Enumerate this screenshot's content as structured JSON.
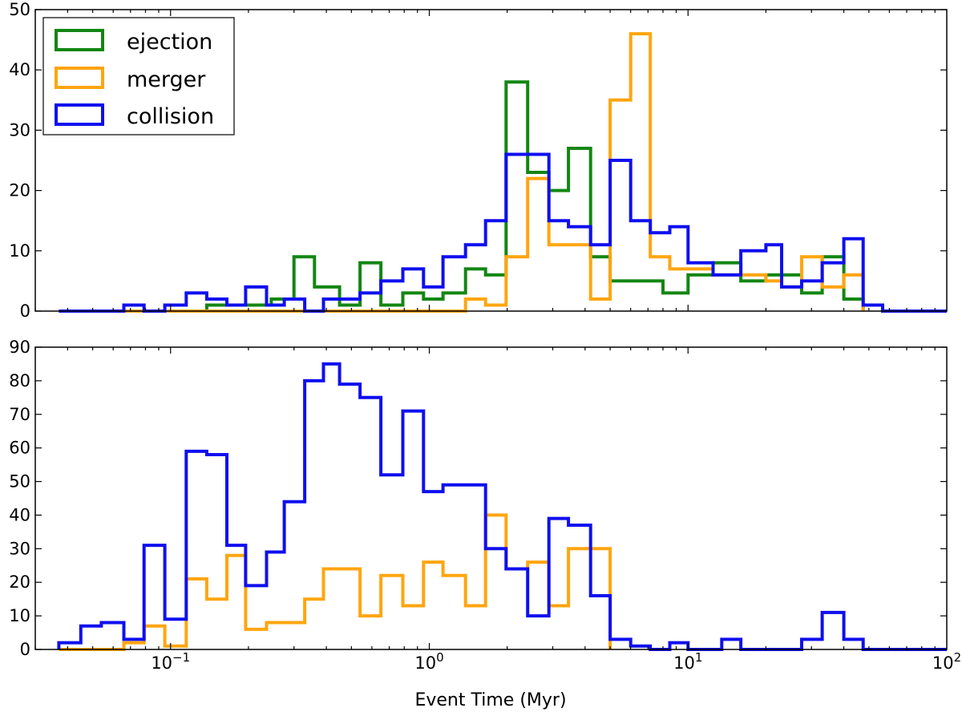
{
  "colors": {
    "ejection": "#138613",
    "merger": "#ffa50f",
    "collision": "#0f0fef"
  },
  "chart_data": [
    {
      "type": "step-histogram",
      "xscale": "log",
      "xlim": [
        0.03,
        100
      ],
      "ylim": [
        0,
        50
      ],
      "yticks": [
        0,
        10,
        20,
        30,
        40,
        50
      ],
      "xlabel": "",
      "legend_position": "top-left",
      "legend": [
        "ejection",
        "merger",
        "collision"
      ],
      "series": [
        {
          "name": "ejection",
          "steps": [
            [
              0.037,
              0
            ],
            [
              0.138,
              1
            ],
            [
              0.245,
              2
            ],
            [
              0.3,
              9
            ],
            [
              0.36,
              4
            ],
            [
              0.45,
              1
            ],
            [
              0.54,
              8
            ],
            [
              0.65,
              1
            ],
            [
              0.79,
              3
            ],
            [
              0.95,
              2
            ],
            [
              1.13,
              3
            ],
            [
              1.38,
              7
            ],
            [
              1.65,
              6
            ],
            [
              1.98,
              38
            ],
            [
              2.4,
              23
            ],
            [
              2.9,
              20
            ],
            [
              3.45,
              27
            ],
            [
              4.2,
              9
            ],
            [
              5.0,
              5
            ],
            [
              8.0,
              3
            ],
            [
              10.0,
              6
            ],
            [
              12.5,
              8
            ],
            [
              16.0,
              5
            ],
            [
              20.0,
              6
            ],
            [
              27.5,
              3
            ],
            [
              33.0,
              9
            ],
            [
              40.0,
              2
            ],
            [
              47.5,
              0
            ]
          ]
        },
        {
          "name": "merger",
          "steps": [
            [
              0.037,
              0
            ],
            [
              1.38,
              2
            ],
            [
              1.65,
              1
            ],
            [
              1.98,
              9
            ],
            [
              2.4,
              22
            ],
            [
              2.9,
              11
            ],
            [
              3.45,
              11
            ],
            [
              4.2,
              2
            ],
            [
              5.0,
              35
            ],
            [
              6.0,
              46
            ],
            [
              7.15,
              9
            ],
            [
              8.5,
              7
            ],
            [
              12.5,
              6
            ],
            [
              16.0,
              6
            ],
            [
              20.0,
              5
            ],
            [
              23.0,
              4
            ],
            [
              27.5,
              9
            ],
            [
              33.0,
              4
            ],
            [
              40.0,
              6
            ],
            [
              47.5,
              0
            ]
          ]
        },
        {
          "name": "collision",
          "steps": [
            [
              0.037,
              0
            ],
            [
              0.066,
              1
            ],
            [
              0.079,
              0
            ],
            [
              0.095,
              1
            ],
            [
              0.115,
              3
            ],
            [
              0.138,
              2
            ],
            [
              0.165,
              1
            ],
            [
              0.195,
              4
            ],
            [
              0.235,
              1
            ],
            [
              0.275,
              2
            ],
            [
              0.33,
              0
            ],
            [
              0.39,
              2
            ],
            [
              0.54,
              3
            ],
            [
              0.65,
              5
            ],
            [
              0.79,
              7
            ],
            [
              0.95,
              4
            ],
            [
              1.13,
              9
            ],
            [
              1.38,
              11
            ],
            [
              1.65,
              15
            ],
            [
              1.98,
              26
            ],
            [
              2.4,
              26
            ],
            [
              2.9,
              15
            ],
            [
              3.45,
              14
            ],
            [
              4.2,
              11
            ],
            [
              5.0,
              25
            ],
            [
              6.0,
              15
            ],
            [
              7.15,
              13
            ],
            [
              8.5,
              14
            ],
            [
              10.0,
              8
            ],
            [
              12.5,
              6
            ],
            [
              16.0,
              10
            ],
            [
              20.0,
              11
            ],
            [
              23.0,
              4
            ],
            [
              27.5,
              5
            ],
            [
              33.0,
              8
            ],
            [
              40.0,
              12
            ],
            [
              47.5,
              1
            ],
            [
              56.5,
              0
            ],
            [
              100,
              0
            ]
          ]
        }
      ]
    },
    {
      "type": "step-histogram",
      "xscale": "log",
      "xlim": [
        0.03,
        100
      ],
      "ylim": [
        0,
        90
      ],
      "yticks": [
        0,
        10,
        20,
        30,
        40,
        50,
        60,
        70,
        80,
        90
      ],
      "xticks": [
        {
          "base": "10",
          "exp": "−1",
          "value": 0.1
        },
        {
          "base": "10",
          "exp": "0",
          "value": 1
        },
        {
          "base": "10",
          "exp": "1",
          "value": 10
        },
        {
          "base": "10",
          "exp": "2",
          "value": 100
        }
      ],
      "xlabel": "Event Time (Myr)",
      "series": [
        {
          "name": "merger",
          "steps": [
            [
              0.037,
              0
            ],
            [
              0.066,
              2
            ],
            [
              0.079,
              7
            ],
            [
              0.095,
              1
            ],
            [
              0.115,
              21
            ],
            [
              0.138,
              15
            ],
            [
              0.165,
              28
            ],
            [
              0.195,
              6
            ],
            [
              0.235,
              8
            ],
            [
              0.33,
              15
            ],
            [
              0.39,
              24
            ],
            [
              0.54,
              10
            ],
            [
              0.65,
              22
            ],
            [
              0.79,
              13
            ],
            [
              0.95,
              26
            ],
            [
              1.13,
              22
            ],
            [
              1.38,
              13
            ],
            [
              1.65,
              40
            ],
            [
              1.98,
              24
            ],
            [
              2.4,
              26
            ],
            [
              2.9,
              13
            ],
            [
              3.45,
              30
            ],
            [
              5.0,
              0
            ]
          ]
        },
        {
          "name": "collision",
          "steps": [
            [
              0.037,
              2
            ],
            [
              0.045,
              7
            ],
            [
              0.054,
              8
            ],
            [
              0.066,
              3
            ],
            [
              0.079,
              31
            ],
            [
              0.095,
              9
            ],
            [
              0.115,
              59
            ],
            [
              0.138,
              58
            ],
            [
              0.165,
              31
            ],
            [
              0.195,
              19
            ],
            [
              0.235,
              29
            ],
            [
              0.275,
              44
            ],
            [
              0.33,
              80
            ],
            [
              0.39,
              85
            ],
            [
              0.45,
              79
            ],
            [
              0.54,
              75
            ],
            [
              0.65,
              52
            ],
            [
              0.79,
              71
            ],
            [
              0.95,
              47
            ],
            [
              1.13,
              49
            ],
            [
              1.65,
              30
            ],
            [
              1.98,
              24
            ],
            [
              2.4,
              10
            ],
            [
              2.9,
              39
            ],
            [
              3.45,
              37
            ],
            [
              4.2,
              16
            ],
            [
              5.0,
              3
            ],
            [
              6.0,
              1
            ],
            [
              7.15,
              0
            ],
            [
              8.5,
              2
            ],
            [
              10.0,
              0
            ],
            [
              13.5,
              3
            ],
            [
              16.0,
              0
            ],
            [
              27.5,
              3
            ],
            [
              33.0,
              11
            ],
            [
              40.0,
              3
            ],
            [
              47.5,
              0
            ],
            [
              100,
              0
            ]
          ]
        }
      ]
    }
  ]
}
